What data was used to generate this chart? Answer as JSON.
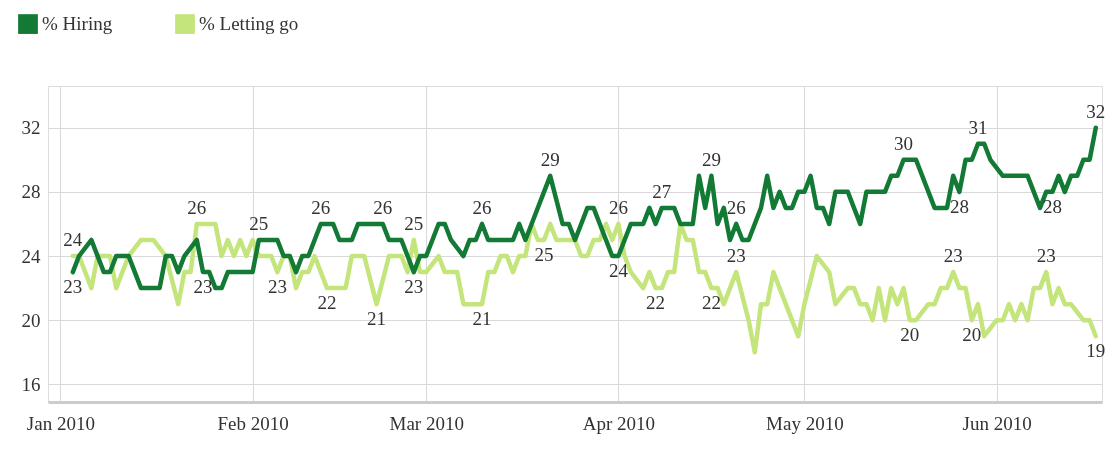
{
  "chart_data": {
    "type": "line",
    "xlim": [
      "2009-12-30",
      "2010-06-18"
    ],
    "xticks": [
      {
        "value": "2010-01-01",
        "label": "Jan 2010"
      },
      {
        "value": "2010-02-01",
        "label": "Feb 2010"
      },
      {
        "value": "2010-03-01",
        "label": "Mar 2010"
      },
      {
        "value": "2010-04-01",
        "label": "Apr 2010"
      },
      {
        "value": "2010-05-01",
        "label": "May 2010"
      },
      {
        "value": "2010-06-01",
        "label": "Jun 2010"
      }
    ],
    "ylim": [
      14.9,
      34.6
    ],
    "yticks": [
      16,
      20,
      24,
      28,
      32
    ],
    "grid": true,
    "legend": "top left",
    "marker": "none",
    "line_style": "solid",
    "series": [
      {
        "name": "% Hiring",
        "color": "#137a36",
        "x": [
          "2010-01-03",
          "2010-01-04",
          "2010-01-06",
          "2010-01-08",
          "2010-01-09",
          "2010-01-10",
          "2010-01-12",
          "2010-01-13",
          "2010-01-14",
          "2010-01-17",
          "2010-01-18",
          "2010-01-19",
          "2010-01-20",
          "2010-01-21",
          "2010-01-23",
          "2010-01-24",
          "2010-01-25",
          "2010-01-26",
          "2010-01-27",
          "2010-01-28",
          "2010-02-01",
          "2010-02-02",
          "2010-02-05",
          "2010-02-06",
          "2010-02-07",
          "2010-02-08",
          "2010-02-09",
          "2010-02-10",
          "2010-02-11",
          "2010-02-12",
          "2010-02-14",
          "2010-02-15",
          "2010-02-17",
          "2010-02-18",
          "2010-02-22",
          "2010-02-23",
          "2010-02-25",
          "2010-02-26",
          "2010-02-27",
          "2010-02-28",
          "2010-03-01",
          "2010-03-02",
          "2010-03-03",
          "2010-03-04",
          "2010-03-05",
          "2010-03-07",
          "2010-03-08",
          "2010-03-09",
          "2010-03-10",
          "2010-03-11",
          "2010-03-15",
          "2010-03-16",
          "2010-03-17",
          "2010-03-18",
          "2010-03-21",
          "2010-03-23",
          "2010-03-24",
          "2010-03-25",
          "2010-03-26",
          "2010-03-27",
          "2010-03-28",
          "2010-03-29",
          "2010-03-30",
          "2010-03-31",
          "2010-04-01",
          "2010-04-02",
          "2010-04-03",
          "2010-04-05",
          "2010-04-06",
          "2010-04-07",
          "2010-04-08",
          "2010-04-10",
          "2010-04-11",
          "2010-04-13",
          "2010-04-14",
          "2010-04-15",
          "2010-04-16",
          "2010-04-17",
          "2010-04-18",
          "2010-04-19",
          "2010-04-20",
          "2010-04-21",
          "2010-04-22",
          "2010-04-24",
          "2010-04-25",
          "2010-04-26",
          "2010-04-27",
          "2010-04-28",
          "2010-04-29",
          "2010-04-30",
          "2010-05-01",
          "2010-05-02",
          "2010-05-03",
          "2010-05-04",
          "2010-05-05",
          "2010-05-06",
          "2010-05-08",
          "2010-05-10",
          "2010-05-11",
          "2010-05-13",
          "2010-05-14",
          "2010-05-15",
          "2010-05-16",
          "2010-05-17",
          "2010-05-19",
          "2010-05-22",
          "2010-05-24",
          "2010-05-25",
          "2010-05-26",
          "2010-05-27",
          "2010-05-28",
          "2010-05-29",
          "2010-05-30",
          "2010-05-31",
          "2010-06-02",
          "2010-06-04",
          "2010-06-06",
          "2010-06-08",
          "2010-06-09",
          "2010-06-10",
          "2010-06-11",
          "2010-06-12",
          "2010-06-13",
          "2010-06-14",
          "2010-06-15",
          "2010-06-16",
          "2010-06-17"
        ],
        "values": [
          23,
          24,
          25,
          23,
          23,
          24,
          24,
          23,
          22,
          22,
          24,
          24,
          23,
          24,
          25,
          23,
          23,
          22,
          22,
          23,
          23,
          25,
          25,
          24,
          24,
          23,
          24,
          24,
          25,
          26,
          26,
          25,
          25,
          26,
          26,
          25,
          25,
          24,
          23,
          24,
          24,
          25,
          26,
          26,
          25,
          24,
          25,
          25,
          26,
          25,
          25,
          26,
          25,
          26,
          29,
          26,
          26,
          25,
          26,
          27,
          27,
          26,
          25,
          24,
          24,
          25,
          26,
          26,
          27,
          26,
          27,
          27,
          26,
          26,
          29,
          27,
          29,
          26,
          27,
          25,
          26,
          25,
          25,
          27,
          29,
          27,
          28,
          27,
          27,
          28,
          28,
          29,
          27,
          27,
          26,
          28,
          28,
          26,
          28,
          28,
          28,
          29,
          29,
          30,
          30,
          27,
          27,
          29,
          28,
          30,
          30,
          31,
          31,
          30,
          29,
          29,
          29,
          27,
          28,
          28,
          29,
          28,
          29,
          29,
          30,
          30,
          32
        ]
      },
      {
        "name": "% Letting go",
        "color": "#c4e57b",
        "x": [
          "2010-01-03",
          "2010-01-04",
          "2010-01-06",
          "2010-01-07",
          "2010-01-09",
          "2010-01-10",
          "2010-01-12",
          "2010-01-14",
          "2010-01-16",
          "2010-01-18",
          "2010-01-20",
          "2010-01-21",
          "2010-01-22",
          "2010-01-23",
          "2010-01-26",
          "2010-01-27",
          "2010-01-28",
          "2010-01-29",
          "2010-01-30",
          "2010-01-31",
          "2010-02-01",
          "2010-02-02",
          "2010-02-04",
          "2010-02-05",
          "2010-02-06",
          "2010-02-07",
          "2010-02-08",
          "2010-02-09",
          "2010-02-10",
          "2010-02-11",
          "2010-02-13",
          "2010-02-16",
          "2010-02-17",
          "2010-02-19",
          "2010-02-21",
          "2010-02-23",
          "2010-02-25",
          "2010-02-26",
          "2010-02-27",
          "2010-02-28",
          "2010-03-01",
          "2010-03-03",
          "2010-03-04",
          "2010-03-06",
          "2010-03-07",
          "2010-03-10",
          "2010-03-11",
          "2010-03-12",
          "2010-03-13",
          "2010-03-14",
          "2010-03-15",
          "2010-03-16",
          "2010-03-17",
          "2010-03-18",
          "2010-03-19",
          "2010-03-20",
          "2010-03-21",
          "2010-03-22",
          "2010-03-23",
          "2010-03-25",
          "2010-03-26",
          "2010-03-27",
          "2010-03-28",
          "2010-03-29",
          "2010-03-30",
          "2010-03-31",
          "2010-04-01",
          "2010-04-02",
          "2010-04-03",
          "2010-04-05",
          "2010-04-06",
          "2010-04-07",
          "2010-04-08",
          "2010-04-09",
          "2010-04-10",
          "2010-04-11",
          "2010-04-12",
          "2010-04-13",
          "2010-04-14",
          "2010-04-15",
          "2010-04-16",
          "2010-04-17",
          "2010-04-18",
          "2010-04-19",
          "2010-04-20",
          "2010-04-22",
          "2010-04-23",
          "2010-04-24",
          "2010-04-25",
          "2010-04-26",
          "2010-04-28",
          "2010-04-30",
          "2010-05-01",
          "2010-05-03",
          "2010-05-05",
          "2010-05-06",
          "2010-05-08",
          "2010-05-09",
          "2010-05-10",
          "2010-05-11",
          "2010-05-12",
          "2010-05-13",
          "2010-05-14",
          "2010-05-15",
          "2010-05-16",
          "2010-05-17",
          "2010-05-18",
          "2010-05-19",
          "2010-05-21",
          "2010-05-22",
          "2010-05-23",
          "2010-05-24",
          "2010-05-25",
          "2010-05-26",
          "2010-05-27",
          "2010-05-28",
          "2010-05-29",
          "2010-05-30",
          "2010-06-01",
          "2010-06-02",
          "2010-06-03",
          "2010-06-04",
          "2010-06-05",
          "2010-06-06",
          "2010-06-07",
          "2010-06-08",
          "2010-06-09",
          "2010-06-10",
          "2010-06-11",
          "2010-06-12",
          "2010-06-13",
          "2010-06-15",
          "2010-06-16",
          "2010-06-17"
        ],
        "values": [
          24,
          24,
          22,
          24,
          24,
          22,
          24,
          25,
          25,
          24,
          21,
          23,
          23,
          26,
          26,
          24,
          25,
          24,
          25,
          24,
          25,
          24,
          24,
          23,
          24,
          24,
          22,
          23,
          23,
          24,
          22,
          22,
          24,
          24,
          21,
          24,
          24,
          23,
          25,
          23,
          23,
          24,
          23,
          23,
          21,
          21,
          23,
          23,
          24,
          24,
          23,
          24,
          24,
          26,
          25,
          25,
          26,
          25,
          25,
          25,
          24,
          24,
          25,
          25,
          26,
          25,
          26,
          24,
          23,
          22,
          23,
          22,
          22,
          23,
          23,
          26,
          25,
          25,
          23,
          23,
          22,
          22,
          21,
          22,
          23,
          20,
          18,
          21,
          21,
          23,
          21,
          19,
          21,
          24,
          23,
          21,
          22,
          22,
          21,
          21,
          20,
          22,
          20,
          22,
          21,
          22,
          20,
          20,
          21,
          21,
          22,
          22,
          23,
          22,
          22,
          20,
          21,
          19,
          20,
          20,
          21,
          20,
          21,
          20,
          22,
          22,
          23,
          21,
          22,
          21,
          21,
          20,
          20,
          19
        ]
      }
    ],
    "annotations": [
      {
        "text": "24",
        "x": "2010-01-03",
        "y": 24
      },
      {
        "text": "23",
        "x": "2010-01-03",
        "y": 23
      },
      {
        "text": "26",
        "x": "2010-01-23",
        "y": 26
      },
      {
        "text": "23",
        "x": "2010-01-24",
        "y": 23
      },
      {
        "text": "25",
        "x": "2010-02-02",
        "y": 25
      },
      {
        "text": "23",
        "x": "2010-02-05",
        "y": 23
      },
      {
        "text": "26",
        "x": "2010-02-12",
        "y": 26
      },
      {
        "text": "22",
        "x": "2010-02-13",
        "y": 22
      },
      {
        "text": "26",
        "x": "2010-02-22",
        "y": 26
      },
      {
        "text": "21",
        "x": "2010-02-21",
        "y": 21
      },
      {
        "text": "25",
        "x": "2010-02-27",
        "y": 25
      },
      {
        "text": "23",
        "x": "2010-02-27",
        "y": 23
      },
      {
        "text": "26",
        "x": "2010-03-10",
        "y": 26
      },
      {
        "text": "21",
        "x": "2010-03-10",
        "y": 21
      },
      {
        "text": "29",
        "x": "2010-03-21",
        "y": 29
      },
      {
        "text": "25",
        "x": "2010-03-20",
        "y": 25
      },
      {
        "text": "26",
        "x": "2010-04-01",
        "y": 26
      },
      {
        "text": "24",
        "x": "2010-04-01",
        "y": 24
      },
      {
        "text": "27",
        "x": "2010-04-08",
        "y": 27
      },
      {
        "text": "22",
        "x": "2010-04-07",
        "y": 22
      },
      {
        "text": "29",
        "x": "2010-04-16",
        "y": 29
      },
      {
        "text": "22",
        "x": "2010-04-16",
        "y": 22
      },
      {
        "text": "26",
        "x": "2010-04-20",
        "y": 26
      },
      {
        "text": "23",
        "x": "2010-04-20",
        "y": 23
      },
      {
        "text": "30",
        "x": "2010-05-17",
        "y": 30
      },
      {
        "text": "20",
        "x": "2010-05-18",
        "y": 20
      },
      {
        "text": "28",
        "x": "2010-05-26",
        "y": 28
      },
      {
        "text": "23",
        "x": "2010-05-25",
        "y": 23
      },
      {
        "text": "31",
        "x": "2010-05-29",
        "y": 31
      },
      {
        "text": "20",
        "x": "2010-05-28",
        "y": 20
      },
      {
        "text": "28",
        "x": "2010-06-10",
        "y": 28
      },
      {
        "text": "23",
        "x": "2010-06-09",
        "y": 23
      },
      {
        "text": "32",
        "x": "2010-06-17",
        "y": 32
      },
      {
        "text": "19",
        "x": "2010-06-17",
        "y": 19
      }
    ]
  }
}
